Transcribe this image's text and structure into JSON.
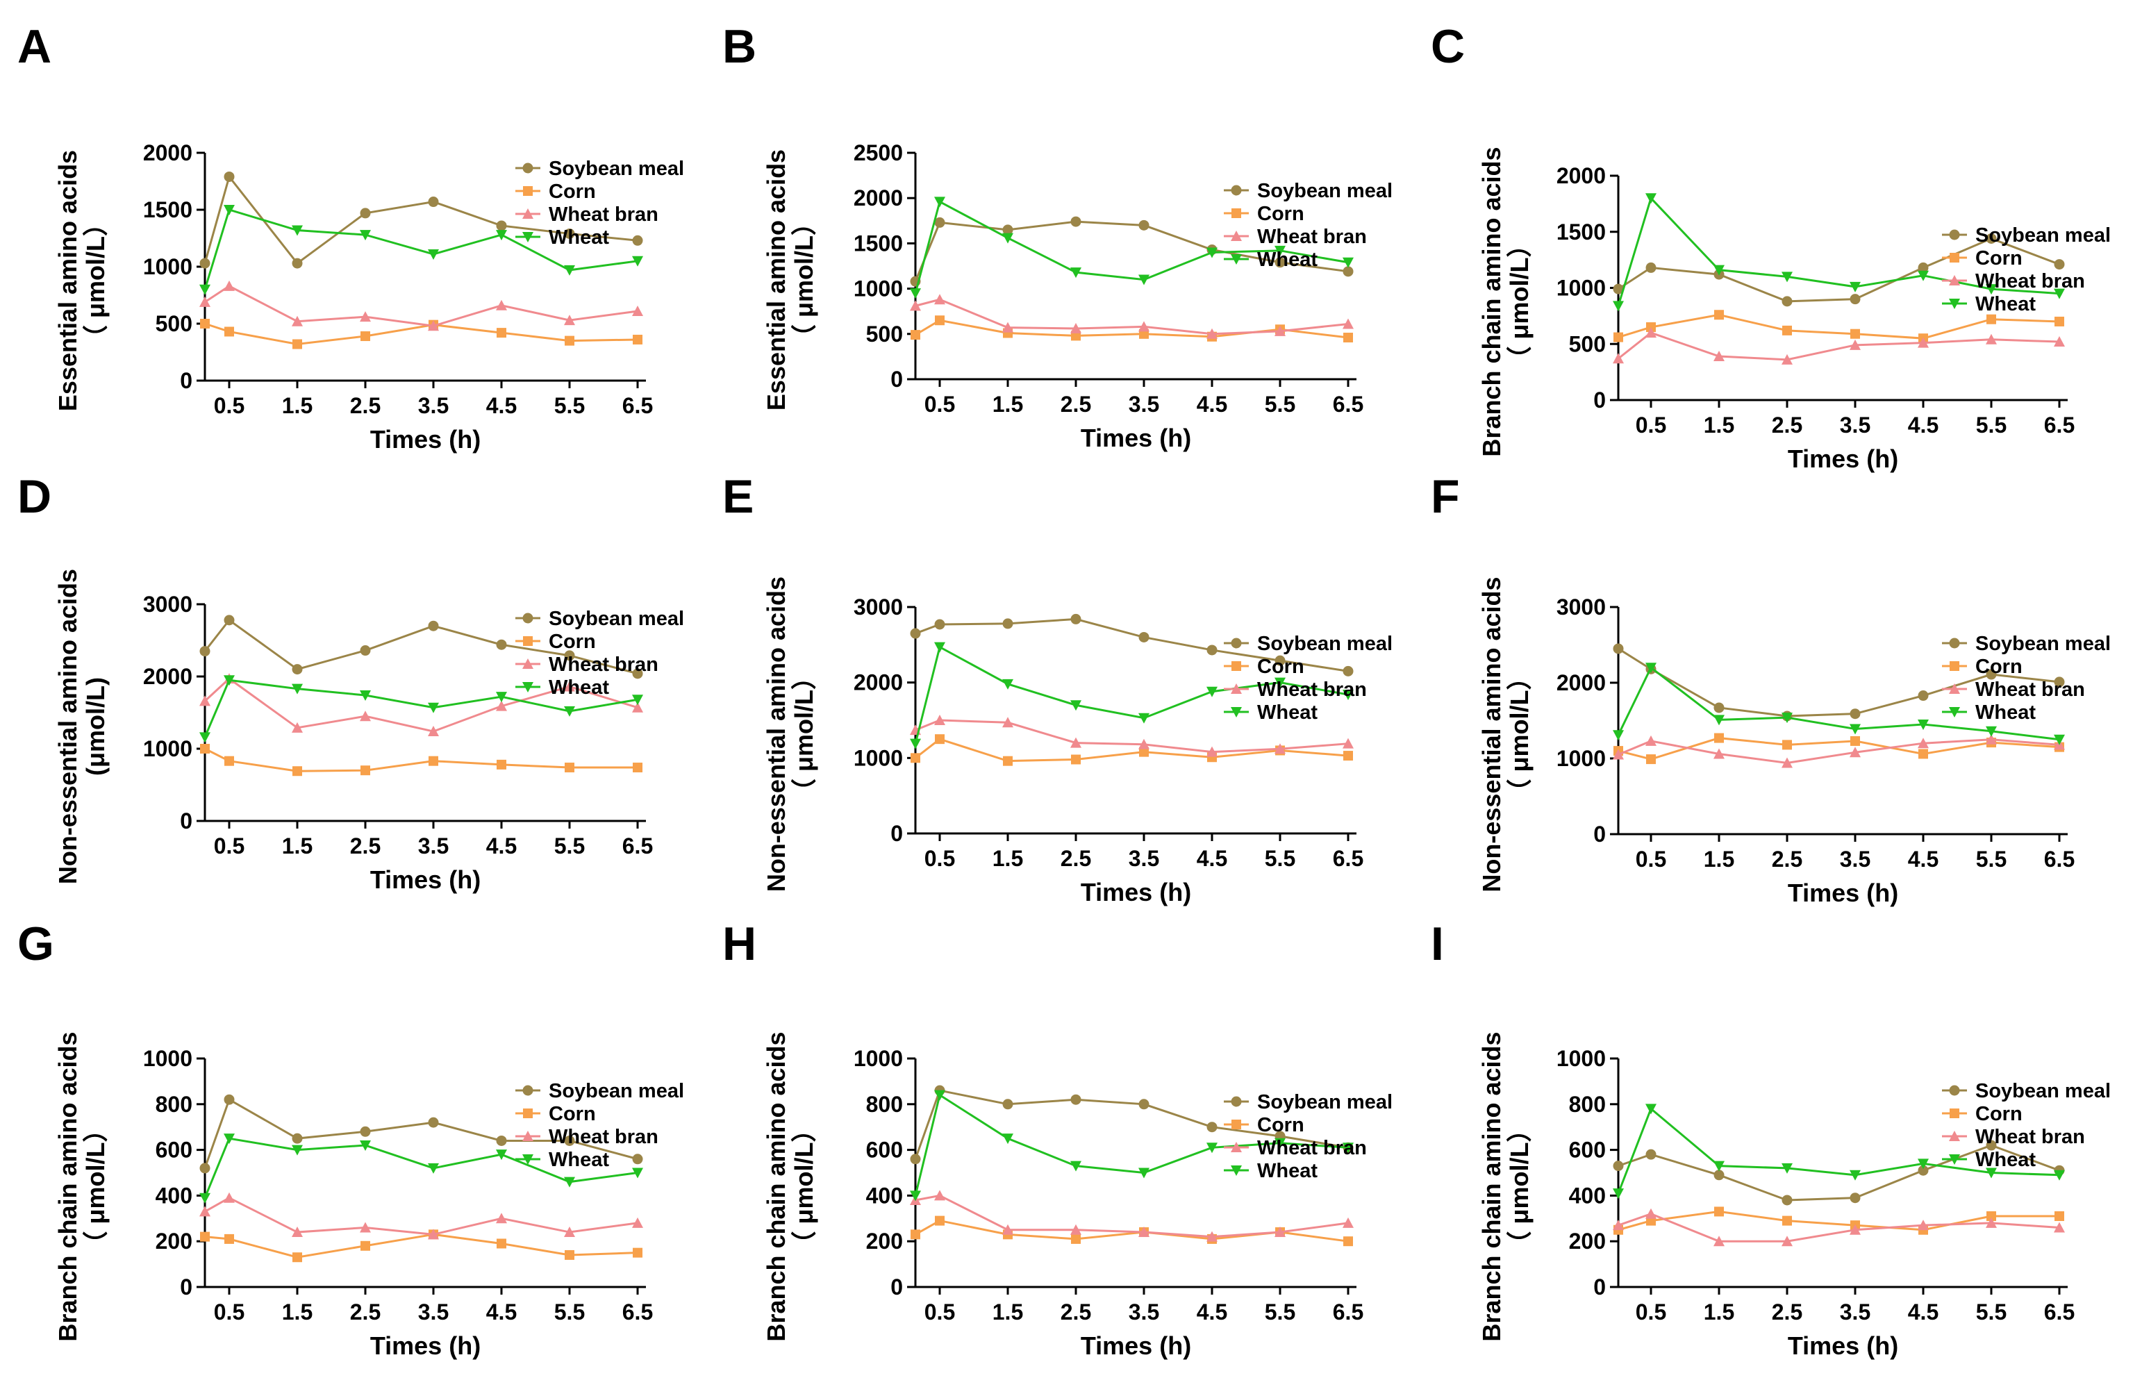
{
  "figure": {
    "series_styles": [
      {
        "name": "Soybean meal",
        "color": "#9B8548",
        "marker": "circle"
      },
      {
        "name": "Corn",
        "color": "#F7A04A",
        "marker": "square"
      },
      {
        "name": "Wheat bran",
        "color": "#F08A8E",
        "marker": "triangle-up"
      },
      {
        "name": "Wheat",
        "color": "#21C021",
        "marker": "triangle-down"
      }
    ]
  },
  "chart_data": [
    {
      "panel": "A",
      "type": "line",
      "ylabel_lines": [
        "Essential amino acids",
        "（ μmol/L）"
      ],
      "xlabel": "Times (h)",
      "x": [
        0,
        0.5,
        1.5,
        2.5,
        3.5,
        4.5,
        5.5,
        6.5
      ],
      "xticks": [
        "0.5",
        "1.5",
        "2.5",
        "3.5",
        "4.5",
        "5.5",
        "6.5"
      ],
      "ylim": [
        0,
        2000
      ],
      "yticks": [
        0,
        500,
        1000,
        1500,
        2000
      ],
      "series": [
        {
          "name": "Soybean meal",
          "values": [
            1030,
            1790,
            1030,
            1470,
            1570,
            1360,
            1290,
            1230
          ]
        },
        {
          "name": "Corn",
          "values": [
            500,
            430,
            320,
            390,
            490,
            420,
            350,
            360
          ]
        },
        {
          "name": "Wheat bran",
          "values": [
            690,
            830,
            520,
            560,
            480,
            660,
            530,
            610
          ]
        },
        {
          "name": "Wheat",
          "values": [
            800,
            1500,
            1320,
            1280,
            1110,
            1280,
            970,
            1050
          ]
        }
      ]
    },
    {
      "panel": "B",
      "type": "line",
      "ylabel_lines": [
        "Essential amino acids",
        "（ μmol/L）"
      ],
      "xlabel": "Times (h)",
      "x": [
        0,
        0.5,
        1.5,
        2.5,
        3.5,
        4.5,
        5.5,
        6.5
      ],
      "xticks": [
        "0.5",
        "1.5",
        "2.5",
        "3.5",
        "4.5",
        "5.5",
        "6.5"
      ],
      "ylim": [
        0,
        2500
      ],
      "yticks": [
        0,
        500,
        1000,
        1500,
        2000,
        2500
      ],
      "series": [
        {
          "name": "Soybean meal",
          "values": [
            1080,
            1730,
            1650,
            1740,
            1700,
            1430,
            1290,
            1190
          ]
        },
        {
          "name": "Corn",
          "values": [
            490,
            650,
            510,
            480,
            500,
            470,
            550,
            460
          ]
        },
        {
          "name": "Wheat bran",
          "values": [
            810,
            880,
            570,
            560,
            580,
            500,
            530,
            610
          ]
        },
        {
          "name": "Wheat",
          "values": [
            950,
            1960,
            1560,
            1180,
            1100,
            1400,
            1420,
            1290
          ]
        }
      ]
    },
    {
      "panel": "C",
      "type": "line",
      "ylabel_lines": [
        "Branch chain amino acids",
        "（ μmol/L）"
      ],
      "xlabel": "Times (h)",
      "x": [
        0,
        0.5,
        1.5,
        2.5,
        3.5,
        4.5,
        5.5,
        6.5
      ],
      "xticks": [
        "0.5",
        "1.5",
        "2.5",
        "3.5",
        "4.5",
        "5.5",
        "6.5"
      ],
      "ylim": [
        0,
        2000
      ],
      "yticks": [
        0,
        500,
        1000,
        1500,
        2000
      ],
      "series": [
        {
          "name": "Soybean meal",
          "values": [
            990,
            1180,
            1120,
            880,
            900,
            1180,
            1440,
            1210
          ]
        },
        {
          "name": "Corn",
          "values": [
            560,
            650,
            760,
            620,
            590,
            550,
            720,
            700
          ]
        },
        {
          "name": "Wheat bran",
          "values": [
            370,
            600,
            390,
            360,
            490,
            510,
            540,
            520
          ]
        },
        {
          "name": "Wheat",
          "values": [
            840,
            1800,
            1160,
            1100,
            1010,
            1110,
            990,
            950
          ]
        }
      ]
    },
    {
      "panel": "D",
      "type": "line",
      "ylabel_lines": [
        "Non-essential amino acids",
        "(μmol/L)"
      ],
      "xlabel": "Times (h)",
      "x": [
        0,
        0.5,
        1.5,
        2.5,
        3.5,
        4.5,
        5.5,
        6.5
      ],
      "xticks": [
        "0.5",
        "1.5",
        "2.5",
        "3.5",
        "4.5",
        "5.5",
        "6.5"
      ],
      "ylim": [
        0,
        3000
      ],
      "yticks": [
        0,
        1000,
        2000,
        3000
      ],
      "series": [
        {
          "name": "Soybean meal",
          "values": [
            2350,
            2780,
            2100,
            2360,
            2700,
            2440,
            2290,
            2040
          ]
        },
        {
          "name": "Corn",
          "values": [
            1000,
            830,
            690,
            700,
            830,
            780,
            740,
            740
          ]
        },
        {
          "name": "Wheat bran",
          "values": [
            1660,
            1970,
            1290,
            1450,
            1240,
            1590,
            1860,
            1570
          ]
        },
        {
          "name": "Wheat",
          "values": [
            1160,
            1950,
            1830,
            1740,
            1570,
            1720,
            1520,
            1680
          ]
        }
      ]
    },
    {
      "panel": "E",
      "type": "line",
      "ylabel_lines": [
        "Non-essential amino acids",
        "（ μmol/L）"
      ],
      "xlabel": "Times (h)",
      "x": [
        0,
        0.5,
        1.5,
        2.5,
        3.5,
        4.5,
        5.5,
        6.5
      ],
      "xticks": [
        "0.5",
        "1.5",
        "2.5",
        "3.5",
        "4.5",
        "5.5",
        "6.5"
      ],
      "ylim": [
        0,
        3000
      ],
      "yticks": [
        0,
        1000,
        2000,
        3000
      ],
      "series": [
        {
          "name": "Soybean meal",
          "values": [
            2650,
            2770,
            2780,
            2840,
            2600,
            2430,
            2290,
            2150
          ]
        },
        {
          "name": "Corn",
          "values": [
            1000,
            1250,
            960,
            980,
            1080,
            1010,
            1100,
            1030
          ]
        },
        {
          "name": "Wheat bran",
          "values": [
            1370,
            1500,
            1470,
            1200,
            1180,
            1080,
            1120,
            1190
          ]
        },
        {
          "name": "Wheat",
          "values": [
            1190,
            2470,
            1980,
            1700,
            1530,
            1880,
            2000,
            1840
          ]
        }
      ]
    },
    {
      "panel": "F",
      "type": "line",
      "ylabel_lines": [
        "Non-essential amino acids",
        "（ μmol/L）"
      ],
      "xlabel": "Times (h)",
      "x": [
        0,
        0.5,
        1.5,
        2.5,
        3.5,
        4.5,
        5.5,
        6.5
      ],
      "xticks": [
        "0.5",
        "1.5",
        "2.5",
        "3.5",
        "4.5",
        "5.5",
        "6.5"
      ],
      "ylim": [
        0,
        3000
      ],
      "yticks": [
        0,
        1000,
        2000,
        3000
      ],
      "series": [
        {
          "name": "Soybean meal",
          "values": [
            2450,
            2180,
            1670,
            1560,
            1590,
            1830,
            2110,
            2010
          ]
        },
        {
          "name": "Corn",
          "values": [
            1100,
            990,
            1270,
            1180,
            1230,
            1060,
            1210,
            1150
          ]
        },
        {
          "name": "Wheat bran",
          "values": [
            1050,
            1230,
            1060,
            940,
            1080,
            1200,
            1250,
            1180
          ]
        },
        {
          "name": "Wheat",
          "values": [
            1310,
            2200,
            1510,
            1540,
            1390,
            1450,
            1360,
            1250
          ]
        }
      ]
    },
    {
      "panel": "G",
      "type": "line",
      "ylabel_lines": [
        "Branch chain amino acids",
        "（ μmol/L）"
      ],
      "xlabel": "Times (h)",
      "x": [
        0,
        0.5,
        1.5,
        2.5,
        3.5,
        4.5,
        5.5,
        6.5
      ],
      "xticks": [
        "0.5",
        "1.5",
        "2.5",
        "3.5",
        "4.5",
        "5.5",
        "6.5"
      ],
      "ylim": [
        0,
        1000
      ],
      "yticks": [
        0,
        200,
        400,
        600,
        800,
        1000
      ],
      "series": [
        {
          "name": "Soybean meal",
          "values": [
            520,
            820,
            650,
            680,
            720,
            640,
            640,
            560
          ]
        },
        {
          "name": "Corn",
          "values": [
            220,
            210,
            130,
            180,
            230,
            190,
            140,
            150
          ]
        },
        {
          "name": "Wheat bran",
          "values": [
            330,
            390,
            240,
            260,
            230,
            300,
            240,
            280
          ]
        },
        {
          "name": "Wheat",
          "values": [
            390,
            650,
            600,
            620,
            520,
            580,
            460,
            500
          ]
        }
      ]
    },
    {
      "panel": "H",
      "type": "line",
      "ylabel_lines": [
        "Branch chain amino acids",
        "（ μmol/L）"
      ],
      "xlabel": "Times (h)",
      "x": [
        0,
        0.5,
        1.5,
        2.5,
        3.5,
        4.5,
        5.5,
        6.5
      ],
      "xticks": [
        "0.5",
        "1.5",
        "2.5",
        "3.5",
        "4.5",
        "5.5",
        "6.5"
      ],
      "ylim": [
        0,
        1000
      ],
      "yticks": [
        0,
        200,
        400,
        600,
        800,
        1000
      ],
      "series": [
        {
          "name": "Soybean meal",
          "values": [
            560,
            860,
            800,
            820,
            800,
            700,
            660,
            610
          ]
        },
        {
          "name": "Corn",
          "values": [
            230,
            290,
            230,
            210,
            240,
            210,
            240,
            200
          ]
        },
        {
          "name": "Wheat bran",
          "values": [
            380,
            400,
            250,
            250,
            240,
            220,
            240,
            280
          ]
        },
        {
          "name": "Wheat",
          "values": [
            400,
            840,
            650,
            530,
            500,
            610,
            630,
            610
          ]
        }
      ]
    },
    {
      "panel": "I",
      "type": "line",
      "ylabel_lines": [
        "Branch chain amino acids",
        "（ μmol/L）"
      ],
      "xlabel": "Times (h)",
      "x": [
        0,
        0.5,
        1.5,
        2.5,
        3.5,
        4.5,
        5.5,
        6.5
      ],
      "xticks": [
        "0.5",
        "1.5",
        "2.5",
        "3.5",
        "4.5",
        "5.5",
        "6.5"
      ],
      "ylim": [
        0,
        1000
      ],
      "yticks": [
        0,
        200,
        400,
        600,
        800,
        1000
      ],
      "series": [
        {
          "name": "Soybean meal",
          "values": [
            530,
            580,
            490,
            380,
            390,
            510,
            620,
            510
          ]
        },
        {
          "name": "Corn",
          "values": [
            250,
            290,
            330,
            290,
            270,
            250,
            310,
            310
          ]
        },
        {
          "name": "Wheat bran",
          "values": [
            270,
            320,
            200,
            200,
            250,
            270,
            280,
            260
          ]
        },
        {
          "name": "Wheat",
          "values": [
            410,
            780,
            530,
            520,
            490,
            540,
            500,
            490
          ]
        }
      ]
    }
  ]
}
